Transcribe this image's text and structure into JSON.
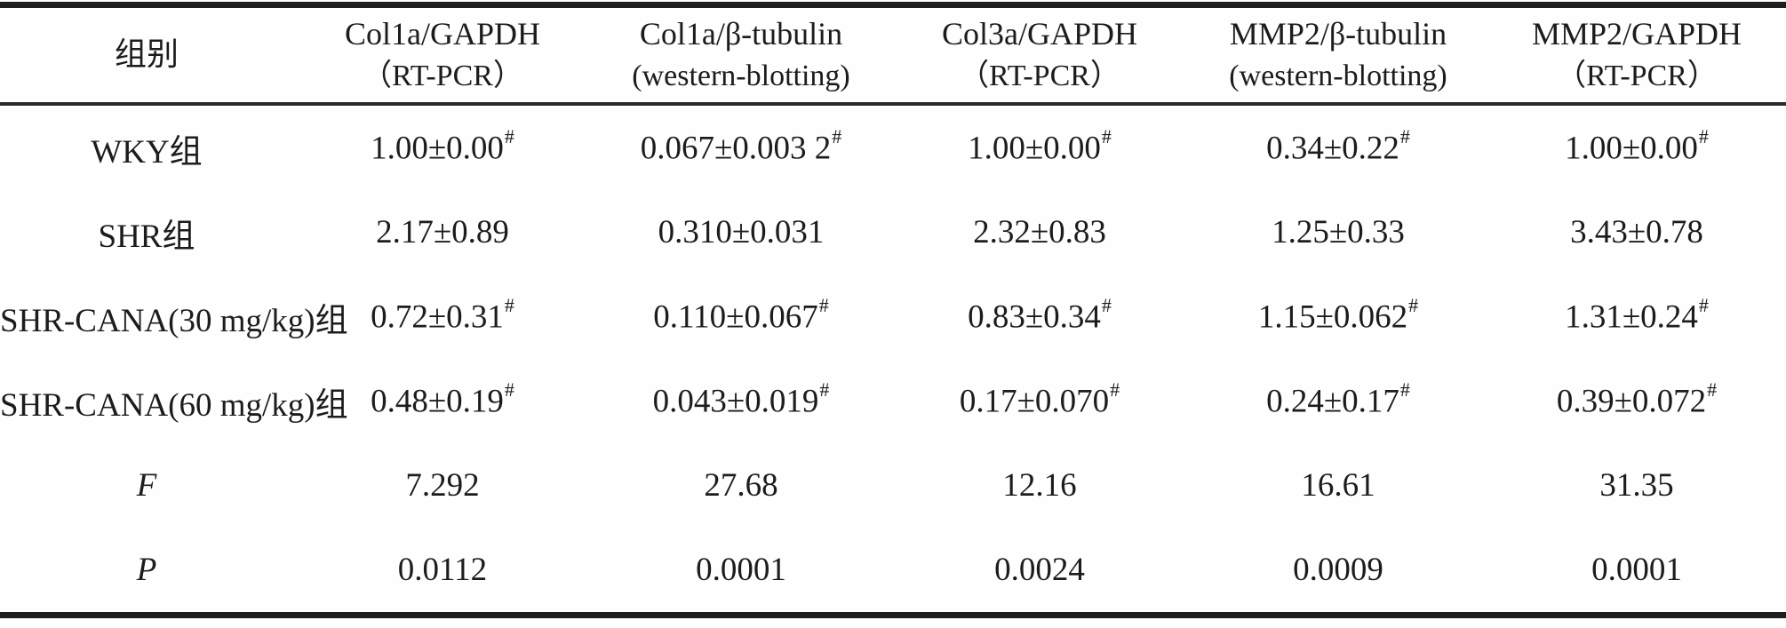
{
  "table": {
    "columns": [
      {
        "line1": "组别",
        "line2": ""
      },
      {
        "line1": "Col1a/GAPDH",
        "line2": "（RT-PCR）"
      },
      {
        "line1": "Col1a/β-tubulin",
        "line2": "(western-blotting)"
      },
      {
        "line1": "Col3a/GAPDH",
        "line2": "（RT-PCR）"
      },
      {
        "line1": "MMP2/β-tubulin",
        "line2": "(western-blotting)"
      },
      {
        "line1": "MMP2/GAPDH",
        "line2": "（RT-PCR）"
      }
    ],
    "marker_symbol": "#",
    "rows": [
      {
        "label": "WKY组",
        "italic": false,
        "cells": [
          {
            "v": "1.00±0.00",
            "s": "#"
          },
          {
            "v": "0.067±0.003 2",
            "s": "#"
          },
          {
            "v": "1.00±0.00",
            "s": "#"
          },
          {
            "v": "0.34±0.22",
            "s": "#"
          },
          {
            "v": "1.00±0.00",
            "s": "#"
          }
        ]
      },
      {
        "label": "SHR组",
        "italic": false,
        "cells": [
          {
            "v": "2.17±0.89"
          },
          {
            "v": "0.310±0.031"
          },
          {
            "v": "2.32±0.83"
          },
          {
            "v": "1.25±0.33"
          },
          {
            "v": "3.43±0.78"
          }
        ]
      },
      {
        "label": "SHR-CANA(30 mg/kg)组",
        "italic": false,
        "cells": [
          {
            "v": "0.72±0.31",
            "s": "#"
          },
          {
            "v": "0.110±0.067",
            "s": "#"
          },
          {
            "v": "0.83±0.34",
            "s": "#"
          },
          {
            "v": "1.15±0.062",
            "s": "#"
          },
          {
            "v": "1.31±0.24",
            "s": "#"
          }
        ]
      },
      {
        "label": "SHR-CANA(60 mg/kg)组",
        "italic": false,
        "cells": [
          {
            "v": "0.48±0.19",
            "s": "#"
          },
          {
            "v": "0.043±0.019",
            "s": "#"
          },
          {
            "v": "0.17±0.070",
            "s": "#"
          },
          {
            "v": "0.24±0.17",
            "s": "#"
          },
          {
            "v": "0.39±0.072",
            "s": "#"
          }
        ]
      },
      {
        "label": "F",
        "italic": true,
        "cells": [
          {
            "v": "7.292"
          },
          {
            "v": "27.68"
          },
          {
            "v": "12.16"
          },
          {
            "v": "16.61"
          },
          {
            "v": "31.35"
          }
        ]
      },
      {
        "label": "P",
        "italic": true,
        "cells": [
          {
            "v": "0.0112"
          },
          {
            "v": "0.0001"
          },
          {
            "v": "0.0024"
          },
          {
            "v": "0.0009"
          },
          {
            "v": "0.0001"
          }
        ]
      }
    ]
  }
}
